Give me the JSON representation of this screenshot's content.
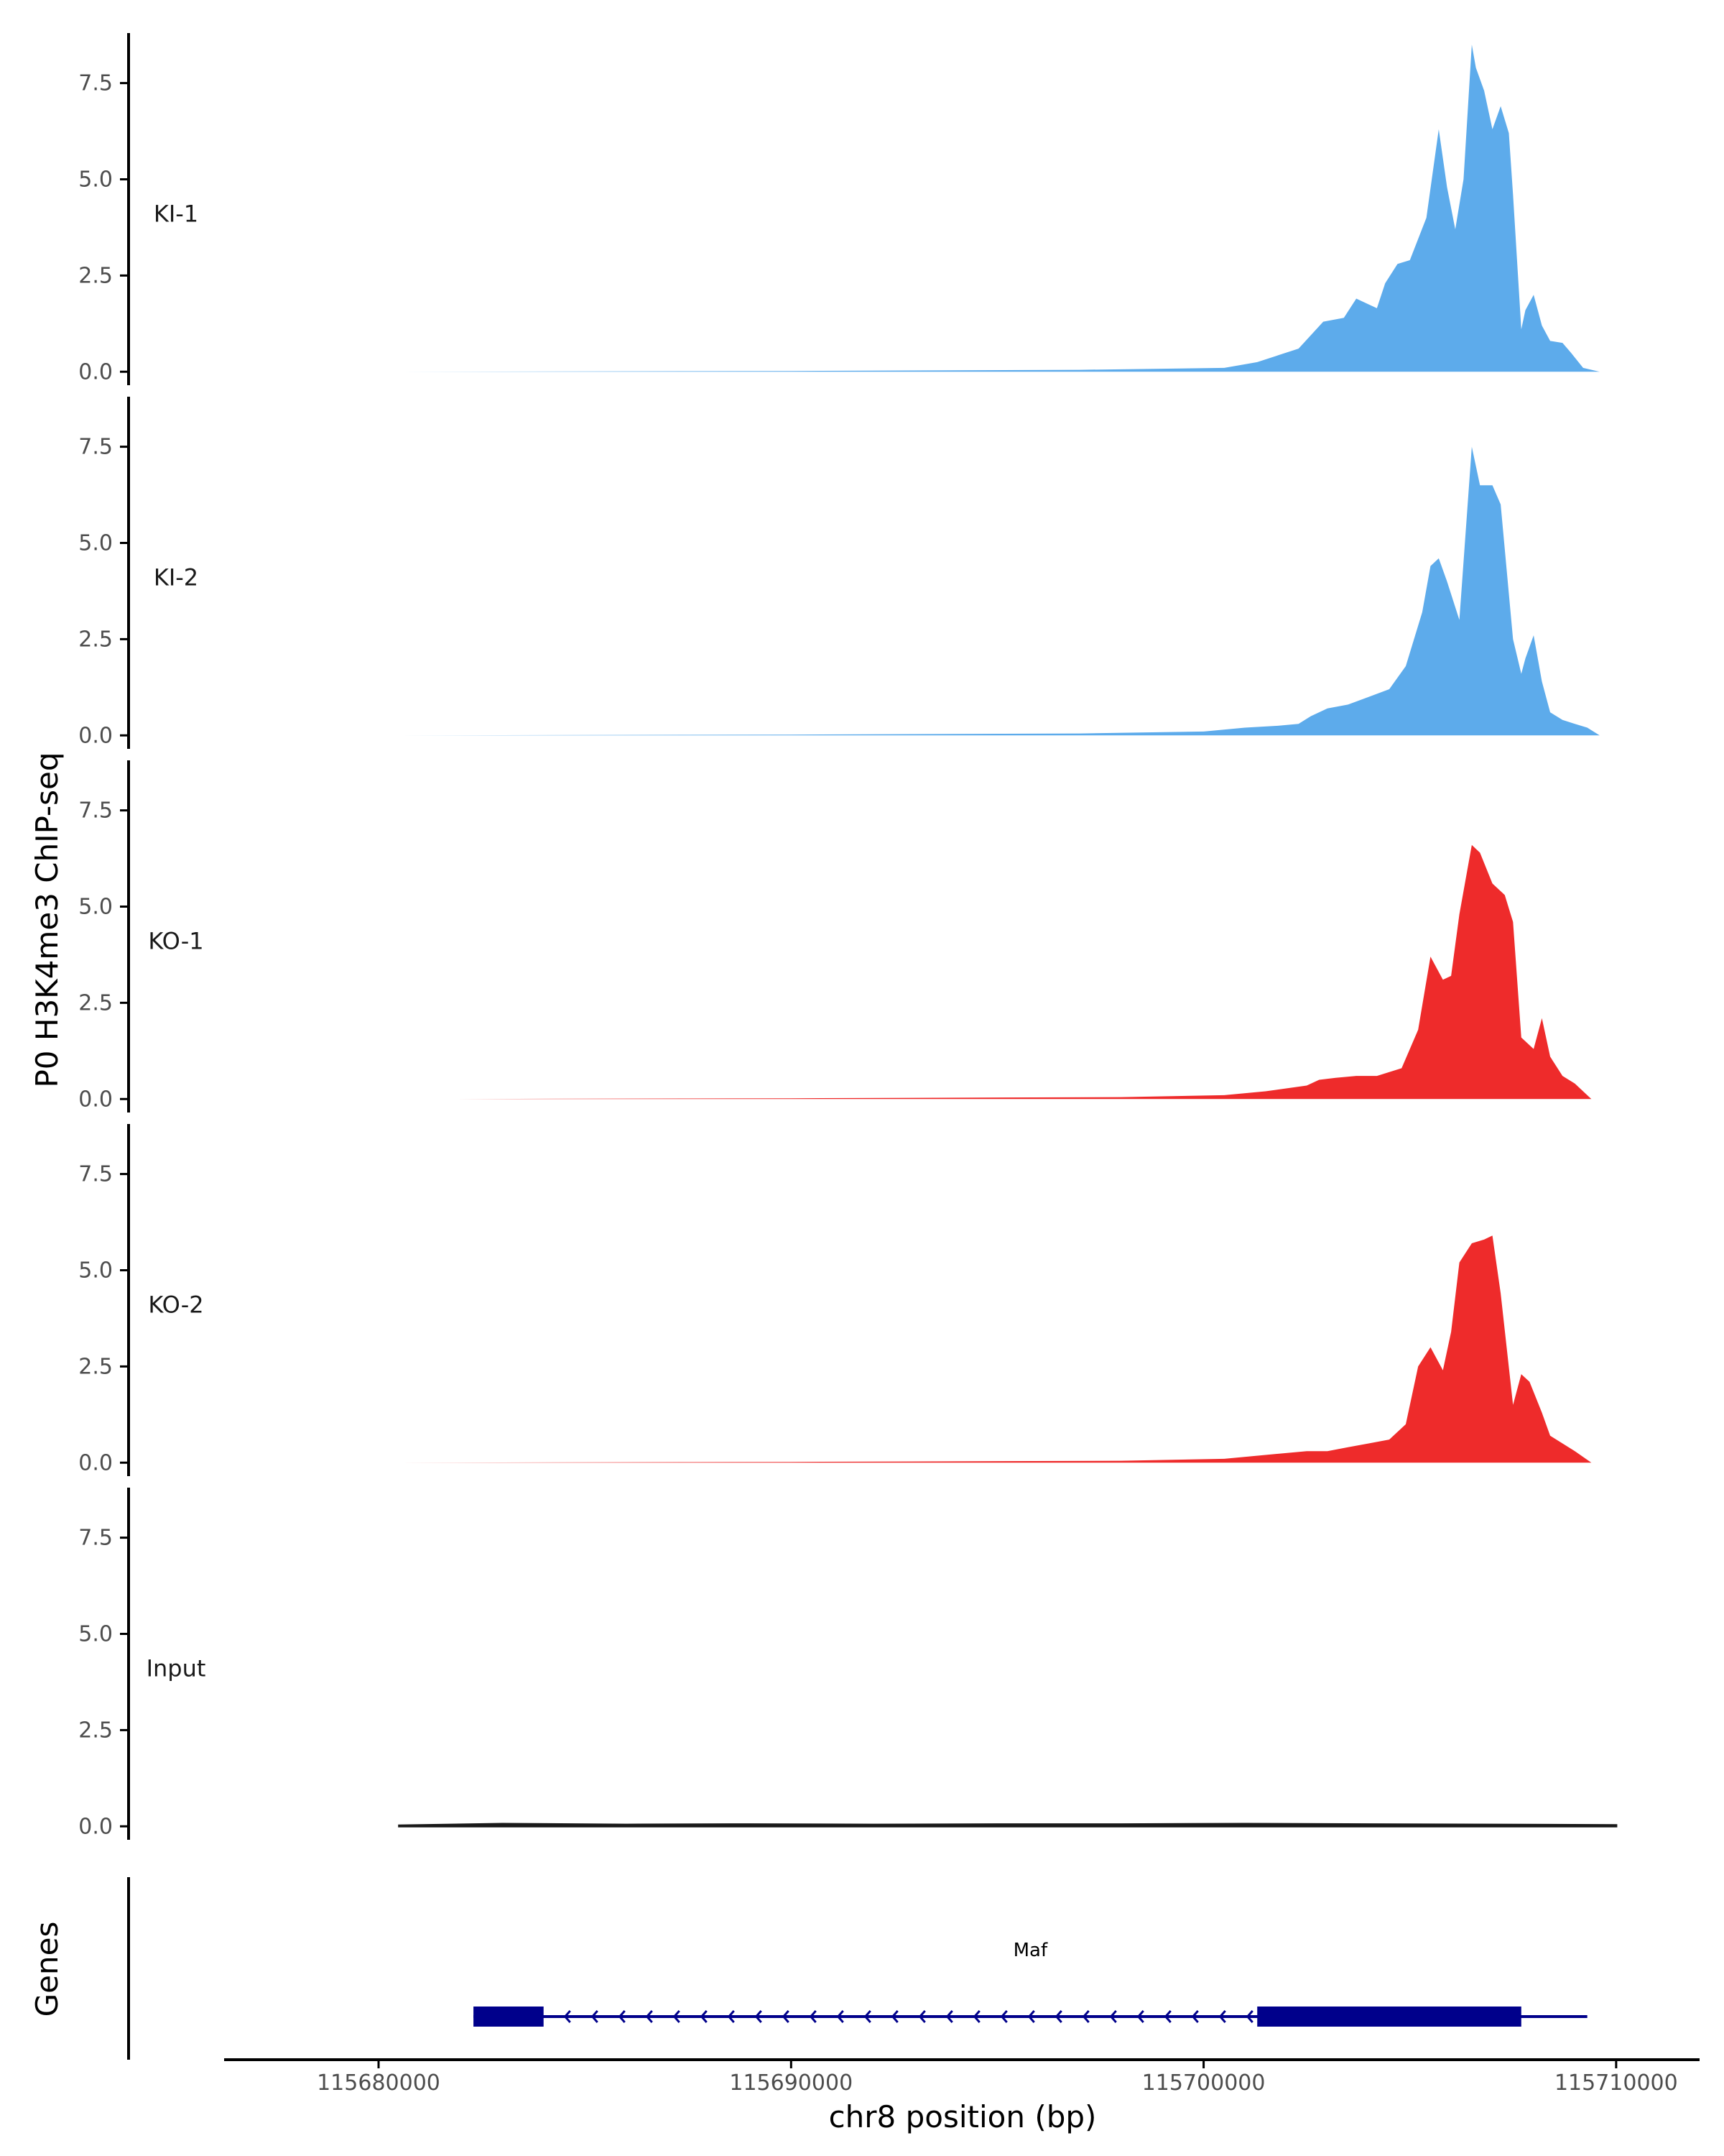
{
  "chart_data": {
    "type": "area",
    "ylabel": "P0 H3K4me3 ChIP-seq",
    "xlabel": "chr8 position (bp)",
    "xlim": [
      115676500,
      115711500
    ],
    "ylim": [
      -0.35,
      8.8
    ],
    "y_ticks": [
      "0.0",
      "2.5",
      "5.0",
      "7.5"
    ],
    "x_ticks": [
      "115680000",
      "115690000",
      "115700000",
      "115710000"
    ],
    "colors": {
      "KI": "#5dabeb",
      "KO": "#ee2b2b",
      "Input": "#1a1a1a",
      "gene": "#00008b",
      "axis": "#000000"
    },
    "tracks": [
      {
        "label": "KI-1",
        "color": "#5dabeb",
        "x": [
          115680500,
          115690000,
          115697000,
          115700500,
          115701300,
          115702300,
          115702900,
          115703400,
          115703700,
          115704200,
          115704400,
          115704700,
          115705000,
          115705400,
          115705700,
          115705900,
          115706100,
          115706300,
          115706500,
          115706600,
          115706800,
          115707000,
          115707200,
          115707400,
          115707500,
          115707700,
          115707800,
          115708000,
          115708200,
          115708400,
          115708700,
          115708900,
          115709200,
          115709600
        ],
        "y": [
          0.0,
          0.02,
          0.05,
          0.1,
          0.25,
          0.6,
          1.3,
          1.4,
          1.9,
          1.65,
          2.3,
          2.8,
          2.9,
          4.0,
          6.3,
          4.8,
          3.7,
          5.0,
          8.5,
          7.9,
          7.3,
          6.3,
          6.9,
          6.2,
          4.6,
          1.1,
          1.6,
          2.0,
          1.2,
          0.8,
          0.75,
          0.5,
          0.1,
          0.0
        ]
      },
      {
        "label": "KI-2",
        "color": "#5dabeb",
        "x": [
          115680500,
          115690000,
          115697000,
          115700000,
          115701000,
          115701800,
          115702300,
          115702600,
          115703000,
          115703500,
          115704000,
          115704500,
          115704900,
          115705300,
          115705500,
          115705700,
          115705900,
          115706200,
          115706500,
          115706700,
          115707000,
          115707200,
          115707500,
          115707700,
          115707800,
          115708000,
          115708200,
          115708400,
          115708700,
          115709000,
          115709300,
          115709600
        ],
        "y": [
          0.0,
          0.02,
          0.05,
          0.1,
          0.2,
          0.25,
          0.3,
          0.5,
          0.7,
          0.8,
          1.0,
          1.2,
          1.8,
          3.2,
          4.4,
          4.6,
          4.0,
          3.0,
          7.5,
          6.5,
          6.5,
          6.0,
          2.5,
          1.6,
          2.0,
          2.6,
          1.4,
          0.6,
          0.4,
          0.3,
          0.2,
          0.0
        ]
      },
      {
        "label": "KO-1",
        "color": "#ee2b2b",
        "x": [
          115681000,
          115690000,
          115698000,
          115700500,
          115701500,
          115702500,
          115702800,
          115703200,
          115703700,
          115704200,
          115704800,
          115705200,
          115705500,
          115705800,
          115706000,
          115706200,
          115706500,
          115706700,
          115707000,
          115707300,
          115707500,
          115707700,
          115708000,
          115708200,
          115708400,
          115708700,
          115709000,
          115709400
        ],
        "y": [
          0.0,
          0.02,
          0.05,
          0.1,
          0.2,
          0.35,
          0.5,
          0.55,
          0.6,
          0.6,
          0.8,
          1.8,
          3.7,
          3.1,
          3.2,
          4.8,
          6.6,
          6.4,
          5.6,
          5.3,
          4.6,
          1.6,
          1.3,
          2.1,
          1.1,
          0.6,
          0.4,
          0.0
        ]
      },
      {
        "label": "KO-2",
        "color": "#ee2b2b",
        "x": [
          115680500,
          115690000,
          115698000,
          115700500,
          115701500,
          115702500,
          115703000,
          115703500,
          115704000,
          115704500,
          115704900,
          115705200,
          115705500,
          115705800,
          115706000,
          115706200,
          115706500,
          115706800,
          115707000,
          115707200,
          115707500,
          115707700,
          115707900,
          115708200,
          115708400,
          115708700,
          115709000,
          115709400
        ],
        "y": [
          0.0,
          0.02,
          0.05,
          0.1,
          0.2,
          0.3,
          0.3,
          0.4,
          0.5,
          0.6,
          1.0,
          2.5,
          3.0,
          2.4,
          3.4,
          5.2,
          5.7,
          5.8,
          5.9,
          4.4,
          1.5,
          2.3,
          2.1,
          1.3,
          0.7,
          0.5,
          0.3,
          0.0
        ]
      },
      {
        "label": "Input",
        "color": "#1a1a1a",
        "x": [
          115680500,
          115683000,
          115686000,
          115689000,
          115692000,
          115695000,
          115698000,
          115701000,
          115704000,
          115707000,
          115710000
        ],
        "y": [
          0.02,
          0.06,
          0.04,
          0.05,
          0.04,
          0.05,
          0.05,
          0.06,
          0.05,
          0.04,
          0.03
        ]
      }
    ],
    "genes": {
      "axis_title": "Genes",
      "items": [
        {
          "name": "Maf",
          "start": 115682300,
          "end": 115709300,
          "strand": "-",
          "exons": [
            {
              "start": 115682300,
              "end": 115684000
            },
            {
              "start": 115701300,
              "end": 115707700
            }
          ]
        }
      ]
    }
  }
}
